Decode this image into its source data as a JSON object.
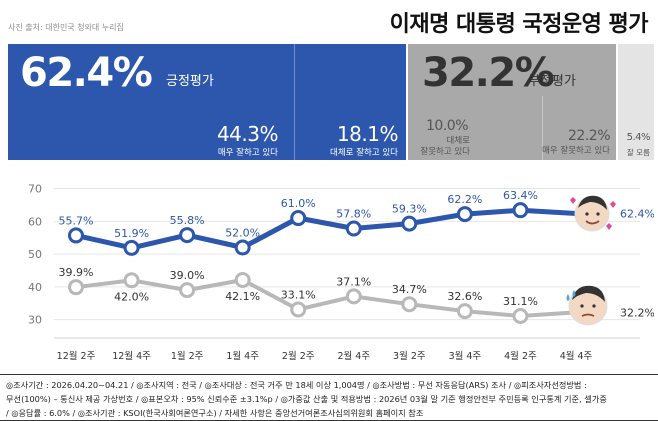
{
  "header": {
    "photo_credit": "사진 출처: 대한민국 청와대 누리집",
    "title": "이재명 대통령 국정운영 평가"
  },
  "summary": {
    "positive": {
      "pct": "62.4%",
      "label": "긍정평가"
    },
    "strong_positive": {
      "pct": "44.3%",
      "label": "매우 잘하고 있다"
    },
    "mild_positive": {
      "pct": "18.1%",
      "label": "대체로 잘하고 있다"
    },
    "negative": {
      "pct": "32.2%",
      "label": "부정평가"
    },
    "mild_negative": {
      "pct": "10.0%",
      "label_lines": [
        "대체로",
        "잘못하고 있다"
      ]
    },
    "strong_negative": {
      "pct": "22.2%",
      "label": "매우 잘못하고 있다"
    },
    "dont_know": {
      "pct": "5.4%",
      "label": "잘 모름"
    }
  },
  "chart_data": {
    "type": "line",
    "categories": [
      "12월 2주",
      "12월 4주",
      "1월 2주",
      "1월 4주",
      "2월 2주",
      "2월 4주",
      "3월 2주",
      "3월 4주",
      "4월 2주",
      "4월 4주"
    ],
    "ylim": [
      25,
      72
    ],
    "yticks": [
      30,
      40,
      50,
      60,
      70
    ],
    "grid": true,
    "series": [
      {
        "values": [
          55.7,
          51.9,
          55.8,
          52.0,
          61.0,
          57.8,
          59.3,
          62.2,
          63.4,
          62.4
        ],
        "labels": [
          "55.7%",
          "51.9%",
          "55.8%",
          "52.0%",
          "61.0%",
          "57.8%",
          "59.3%",
          "62.2%",
          "63.4%",
          "62.4%"
        ],
        "color": "#2d57ad"
      },
      {
        "values": [
          39.9,
          42.0,
          39.0,
          42.1,
          33.1,
          37.1,
          34.7,
          32.6,
          31.1,
          32.2
        ],
        "labels": [
          "39.9%",
          "42.0%",
          "39.0%",
          "42.1%",
          "33.1%",
          "37.1%",
          "34.7%",
          "32.6%",
          "31.1%",
          "32.2%"
        ],
        "color": "#b8b8b8"
      }
    ]
  },
  "colors": {
    "positive": "#2d57ad",
    "negative": "#a9a9a9",
    "neutral": "#e4e4e4"
  },
  "footnote": {
    "line1": "◎조사기간 : 2026.04.20~04.21 / ◎조사지역 : 전국 / ◎조사대상 : 전국 거주 만 18세 이상 1,004명 / ◎조사방법 : 무선 자동응답(ARS) 조사 / ◎피조사자선정방법 :",
    "line2": "무선(100%) – 통신사 제공 가상번호 / ◎표본오차 : 95% 신뢰수준 ±3.1%p / ◎가중값 산출 및 적용방법 : 2026년 03월 말 기준 행정안전부 주민등록 인구통계 기준, 셀가중",
    "line3": "/ ◎응답률 : 6.0% / ◎조사기관 : KSOI(한국사회여론연구소) / 자세한 사항은 중앙선거여론조사심의위원회 홈페이지 참조"
  }
}
